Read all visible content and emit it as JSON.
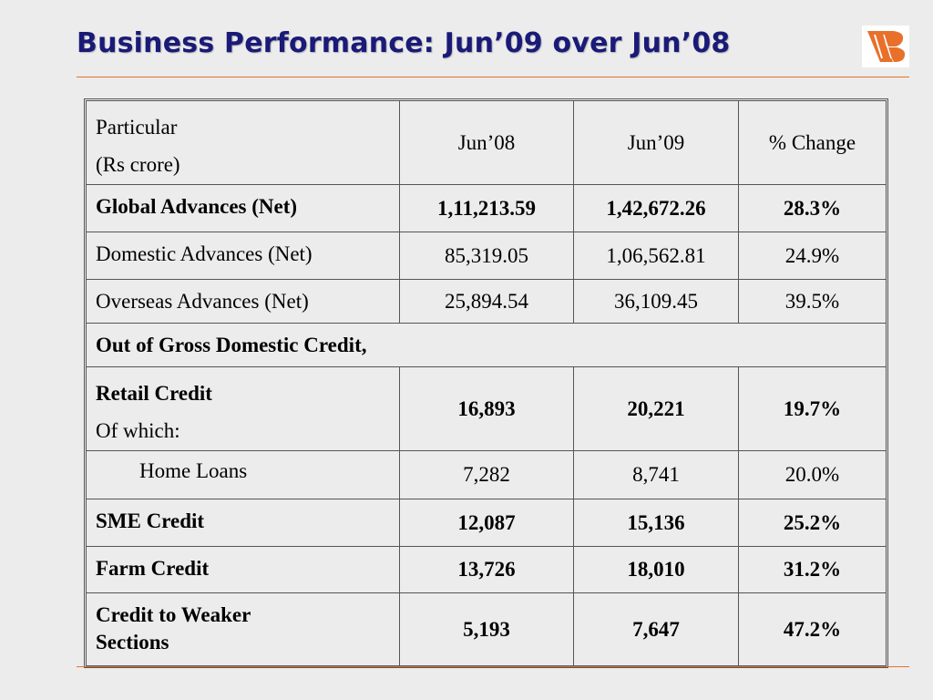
{
  "title": "Business Performance: Jun’09 over Jun’08",
  "logo": {
    "icon": "bank-of-baroda-logo",
    "colors": [
      "#e8702a",
      "#ffffff"
    ]
  },
  "colors": {
    "title": "#1a1a78",
    "accent_line": "#e8702a",
    "row_label": "#a0141e"
  },
  "table": {
    "headers": {
      "particular_line1": "Particular",
      "particular_line2": "(Rs crore)",
      "jun08": "Jun’08",
      "jun09": "Jun’09",
      "change": "% Change"
    },
    "rows": [
      {
        "label": "Global Advances (Net)",
        "jun08": "1,11,213.59",
        "jun09": "1,42,672.26",
        "change": "28.3%"
      },
      {
        "label": "Domestic Advances (Net)",
        "jun08": "85,319.05",
        "jun09": "1,06,562.81",
        "change": "24.9%"
      },
      {
        "label": "Overseas Advances (Net)",
        "jun08": "25,894.54",
        "jun09": "36,109.45",
        "change": "39.5%"
      },
      {
        "label": "Out of Gross Domestic Credit,"
      },
      {
        "label": "Retail Credit",
        "sublabel": "Of which:",
        "jun08": "16,893",
        "jun09": "20,221",
        "change": "19.7%"
      },
      {
        "label": "Home Loans",
        "jun08": "7,282",
        "jun09": "8,741",
        "change": "20.0%"
      },
      {
        "label": "SME Credit",
        "jun08": "12,087",
        "jun09": "15,136",
        "change": "25.2%"
      },
      {
        "label": "Farm Credit",
        "jun08": "13,726",
        "jun09": "18,010",
        "change": "31.2%"
      },
      {
        "label_line1": "Credit to Weaker",
        "label_line2": "Sections",
        "jun08": "5,193",
        "jun09": "7,647",
        "change": "47.2%"
      }
    ]
  }
}
